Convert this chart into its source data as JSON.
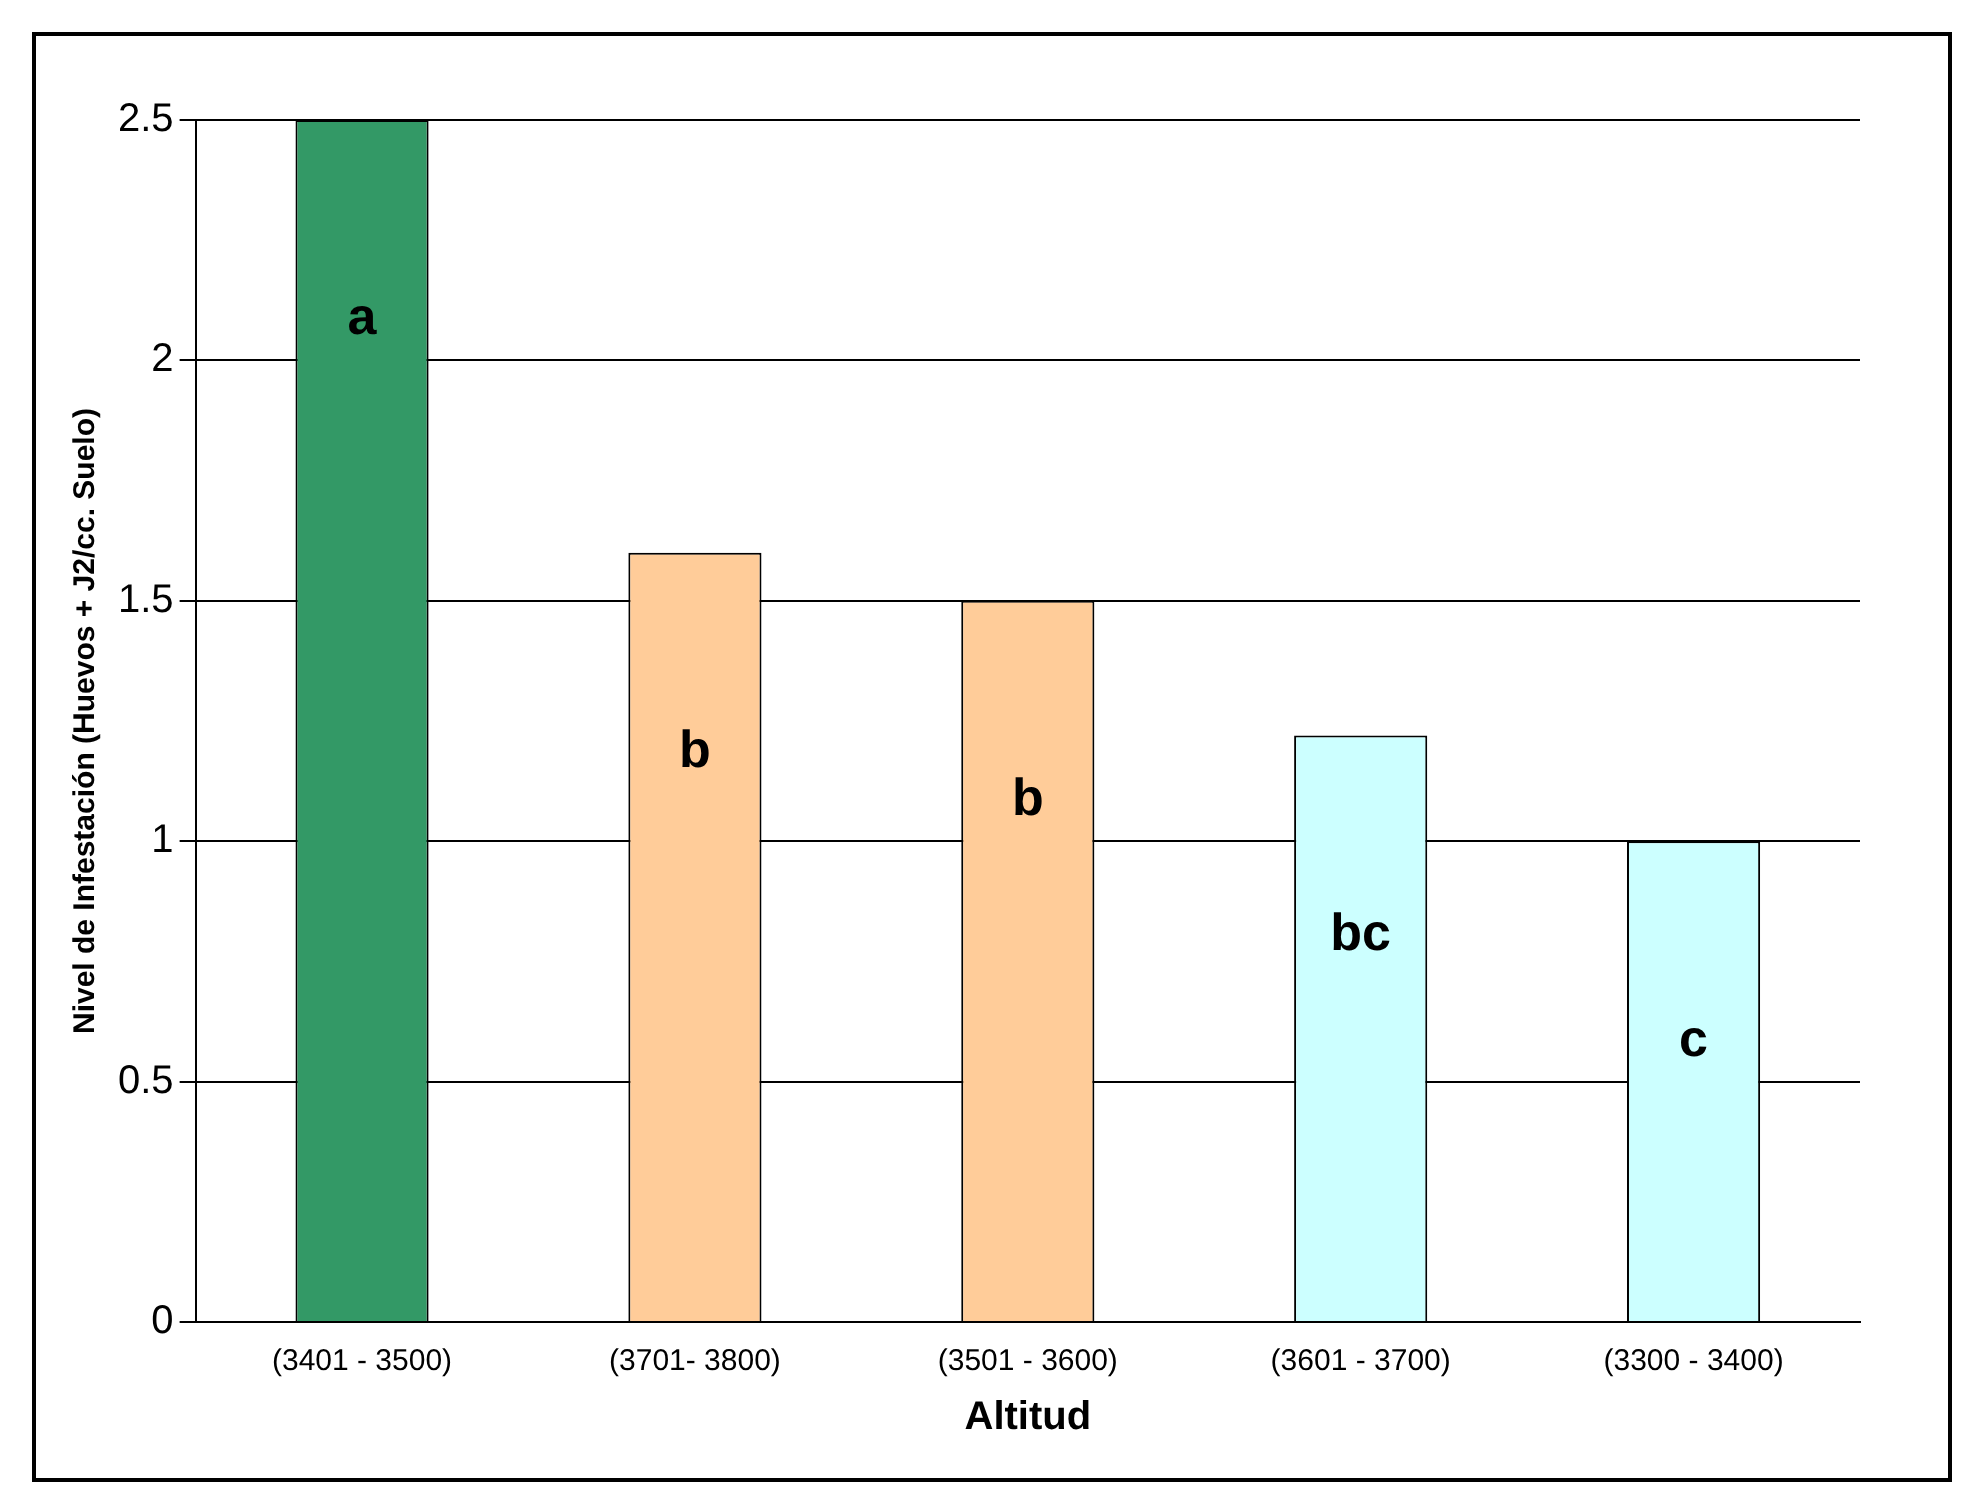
{
  "chart_data": {
    "type": "bar",
    "xlabel": "Altitud",
    "ylabel": "Nivel de Infestación (Huevos + J2/cc. Suelo)",
    "categories": [
      "(3401 - 3500)",
      "(3701- 3800)",
      "(3501 - 3600)",
      "(3601 - 3700)",
      "(3300 - 3400)"
    ],
    "values": [
      2.5,
      1.6,
      1.5,
      1.22,
      1.0
    ],
    "colors": [
      "#339966",
      "#ffcc99",
      "#ffcc99",
      "#ccffff",
      "#ccffff"
    ],
    "ylim": [
      0,
      2.5
    ],
    "yticks": [
      0,
      0.5,
      1,
      1.5,
      2,
      2.5
    ],
    "grid": "y",
    "legend": false,
    "annotations": [
      "a",
      "b",
      "b",
      "bc",
      "c"
    ]
  }
}
